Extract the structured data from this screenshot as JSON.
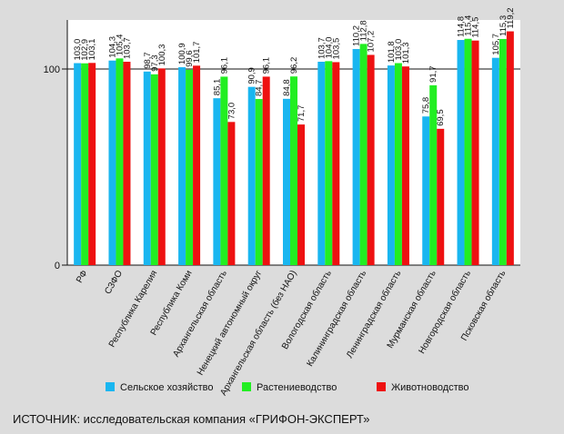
{
  "chart_data": {
    "type": "bar",
    "categories": [
      "РФ",
      "СЗФО",
      "Республика Карелия",
      "Республика Коми",
      "Архангельская область",
      "Ненецкий автономный округ",
      "Архангельская область (без НАО)",
      "Вологодская область",
      "Калининградская область",
      "Ленинградская область",
      "Мурманская область",
      "Новгородская область",
      "Псковская область"
    ],
    "series": [
      {
        "name": "Сельское хозяйство",
        "color": "#19b6f0",
        "values": [
          103.0,
          104.3,
          98.7,
          100.9,
          85.1,
          90.9,
          84.8,
          103.7,
          110.2,
          101.8,
          75.8,
          114.8,
          105.7
        ],
        "labels": [
          "103,0",
          "104,3",
          "98,7",
          "100,9",
          "85,1",
          "90,9",
          "84,8",
          "103,7",
          "110,2",
          "101,8",
          "75,8",
          "114,8",
          "105,7"
        ]
      },
      {
        "name": "Растениеводство",
        "color": "#22ee22",
        "values": [
          102.9,
          105.4,
          97.3,
          99.6,
          96.1,
          84.7,
          96.2,
          104.0,
          112.8,
          103.0,
          91.7,
          115.4,
          115.3
        ],
        "labels": [
          "102,9",
          "105,4",
          "97,3",
          "99,6",
          "96,1",
          "84,7",
          "96,2",
          "104,0",
          "112,8",
          "103,0",
          "91,7",
          "115,4",
          "115,3"
        ]
      },
      {
        "name": "Животноводство",
        "color": "#ee1111",
        "values": [
          103.1,
          103.7,
          100.3,
          101.7,
          73.0,
          96.1,
          71.7,
          103.5,
          107.2,
          101.3,
          69.5,
          114.5,
          119.2
        ],
        "labels": [
          "103,1",
          "103,7",
          "100,3",
          "101,7",
          "73,0",
          "96,1",
          "71,7",
          "103,5",
          "107,2",
          "101,3",
          "69,5",
          "114,5",
          "119,2"
        ]
      }
    ],
    "y_ticks": [
      "0",
      "100"
    ],
    "ylim": [
      0,
      125
    ],
    "reference_line": 100,
    "legend": "bottom"
  },
  "source": "ИСТОЧНИК: исследовательская компания «ГРИФОН-ЭКСПЕРТ»"
}
